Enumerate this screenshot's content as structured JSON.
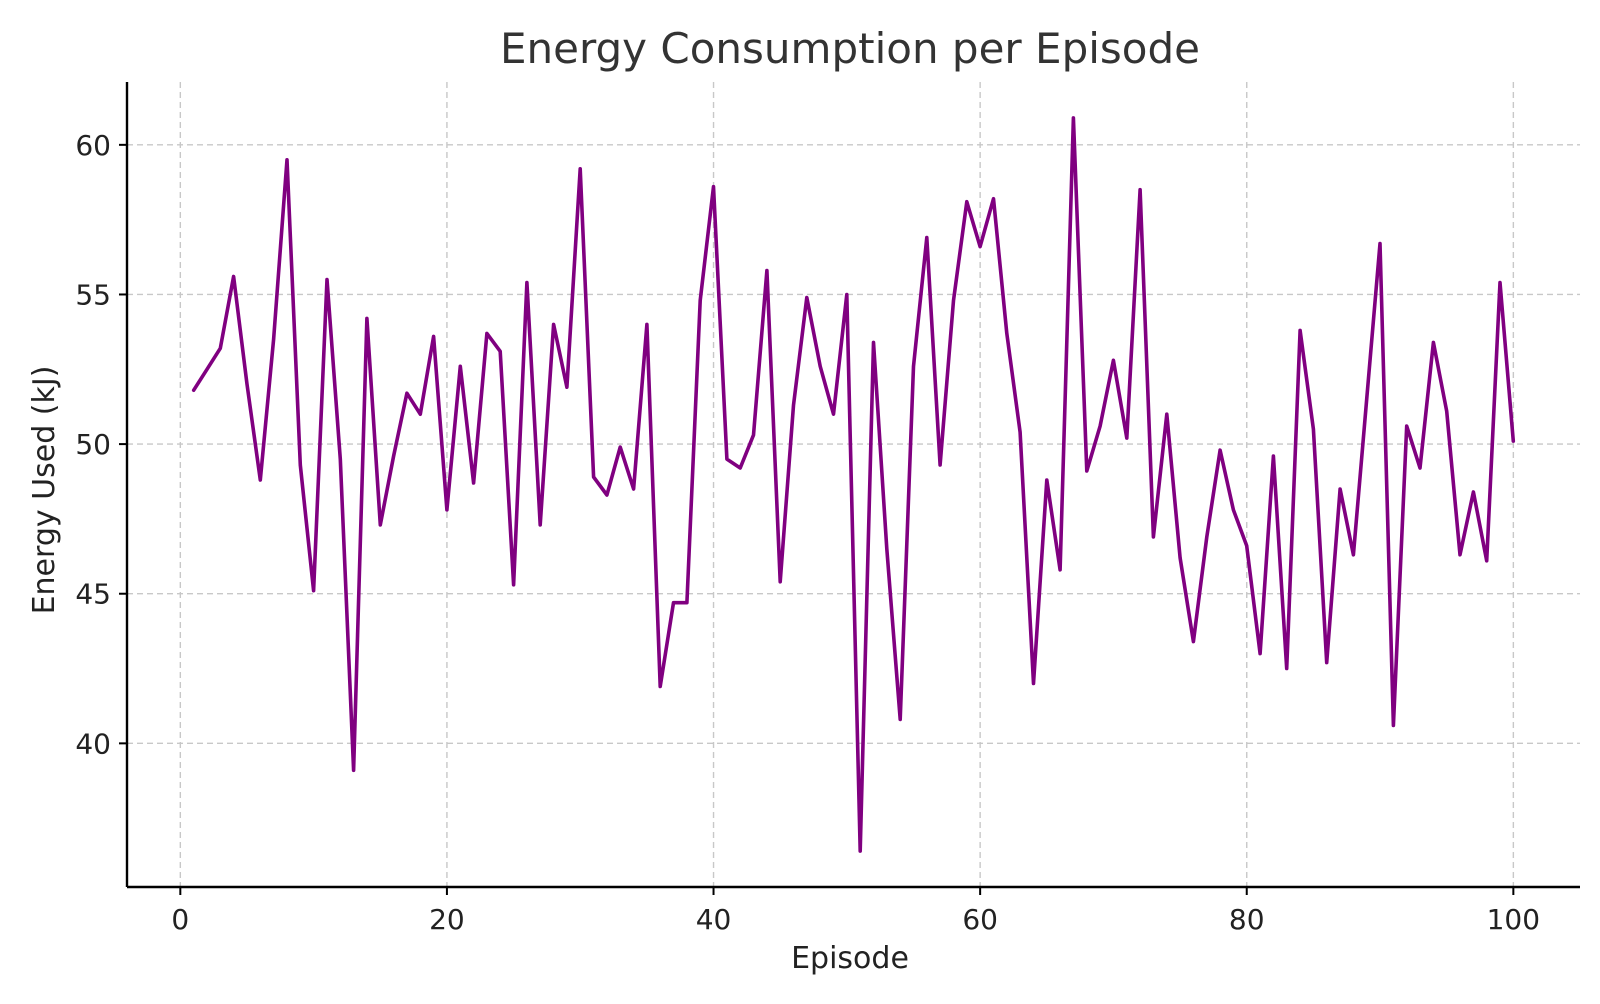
{
  "chart_data": {
    "type": "line",
    "title": "Energy Consumption per Episode",
    "xlabel": "Episode",
    "ylabel": "Energy Used (kJ)",
    "xlim": [
      -4,
      105
    ],
    "ylim": [
      35.2,
      62.1
    ],
    "xticks": [
      0,
      20,
      40,
      60,
      80,
      100
    ],
    "yticks": [
      40,
      45,
      50,
      55,
      60
    ],
    "grid": true,
    "series": [
      {
        "color": "#800080",
        "x": [
          1,
          2,
          3,
          4,
          5,
          6,
          7,
          8,
          9,
          10,
          11,
          12,
          13,
          14,
          15,
          16,
          17,
          18,
          19,
          20,
          21,
          22,
          23,
          24,
          25,
          26,
          27,
          28,
          29,
          30,
          31,
          32,
          33,
          34,
          35,
          36,
          37,
          38,
          39,
          40,
          41,
          42,
          43,
          44,
          45,
          46,
          47,
          48,
          49,
          50,
          51,
          52,
          53,
          54,
          55,
          56,
          57,
          58,
          59,
          60,
          61,
          62,
          63,
          64,
          65,
          66,
          67,
          68,
          69,
          70,
          71,
          72,
          73,
          74,
          75,
          76,
          77,
          78,
          79,
          80,
          81,
          82,
          83,
          84,
          85,
          86,
          87,
          88,
          89,
          90,
          91,
          92,
          93,
          94,
          95,
          96,
          97,
          98,
          99,
          100
        ],
        "y": [
          51.8,
          52.5,
          53.2,
          55.6,
          52.0,
          48.8,
          53.5,
          59.5,
          49.3,
          45.1,
          55.5,
          49.5,
          39.1,
          54.2,
          47.3,
          49.6,
          51.7,
          51.0,
          53.6,
          47.8,
          52.6,
          48.7,
          53.7,
          53.1,
          45.3,
          55.4,
          47.3,
          54.0,
          51.9,
          59.2,
          48.9,
          48.3,
          49.9,
          48.5,
          54.0,
          41.9,
          44.7,
          44.7,
          54.8,
          58.6,
          49.5,
          49.2,
          50.3,
          55.8,
          45.4,
          51.3,
          54.9,
          52.6,
          51.0,
          55.0,
          36.4,
          53.4,
          46.5,
          40.8,
          52.6,
          56.9,
          49.3,
          54.8,
          58.1,
          56.6,
          58.2,
          53.7,
          50.4,
          42.0,
          48.8,
          45.8,
          60.9,
          49.1,
          50.6,
          52.8,
          50.2,
          58.5,
          46.9,
          51.0,
          46.2,
          43.4,
          46.9,
          49.8,
          47.8,
          46.6,
          43.0,
          49.6,
          42.5,
          53.8,
          50.5,
          42.7,
          48.5,
          46.3,
          51.5,
          56.7,
          40.6,
          50.6,
          49.2,
          53.4,
          51.1,
          46.3,
          48.4,
          46.1,
          55.4,
          50.1
        ]
      }
    ]
  }
}
